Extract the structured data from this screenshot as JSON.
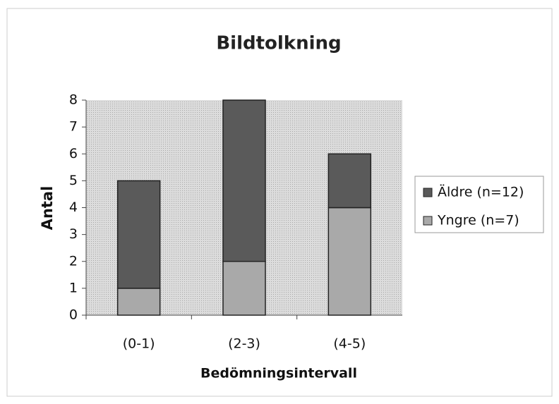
{
  "chart_data": {
    "type": "stacked_bar",
    "title": "Bildtolkning",
    "x_label": "Bedömningsintervall",
    "y_label": "Antal",
    "categories": [
      "(0-1)",
      "(2-3)",
      "(4-5)"
    ],
    "series": [
      {
        "name": "Yngre (n=7)",
        "color": "#a9a9a9",
        "values": [
          1,
          2,
          4
        ]
      },
      {
        "name": "Äldre (n=12)",
        "color": "#5a5a5a",
        "values": [
          4,
          6,
          2
        ]
      }
    ],
    "ylim": [
      0,
      8
    ],
    "yticks": [
      0,
      1,
      2,
      3,
      4,
      5,
      6,
      7,
      8
    ],
    "legend": "right"
  }
}
